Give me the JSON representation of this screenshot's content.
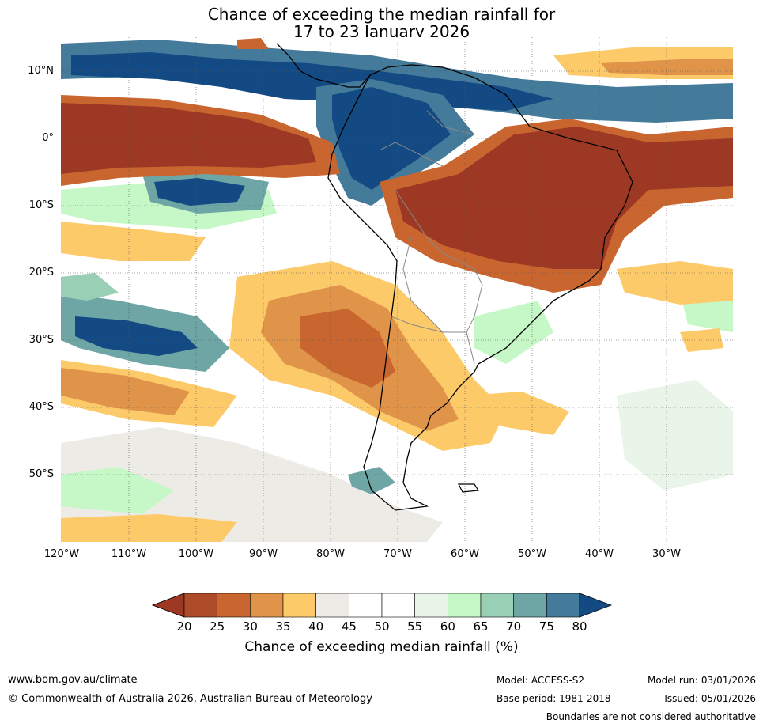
{
  "title": {
    "line1": "Chance of exceeding the median rainfall for",
    "line2": "17 to 23 January 2026"
  },
  "axes": {
    "lat_labels": [
      "10°N",
      "0°",
      "10°S",
      "20°S",
      "30°S",
      "40°S",
      "50°S"
    ],
    "lon_labels": [
      "120°W",
      "110°W",
      "100°W",
      "90°W",
      "80°W",
      "70°W",
      "60°W",
      "50°W",
      "40°W",
      "30°W"
    ]
  },
  "colorbar": {
    "ticks": [
      "20",
      "25",
      "30",
      "35",
      "40",
      "45",
      "50",
      "55",
      "60",
      "65",
      "70",
      "75",
      "80"
    ],
    "colors": [
      "#9c3823",
      "#ad4a28",
      "#c9662f",
      "#e0944a",
      "#fdca6a",
      "#edebe6",
      "#ffffff",
      "#ffffff",
      "#e8f5e8",
      "#c6f7c6",
      "#98cfb5",
      "#6ea6a6",
      "#457b9a",
      "#134a84"
    ],
    "label": "Chance of exceeding median rainfall (%)"
  },
  "footer": {
    "url": "www.bom.gov.au/climate",
    "copyright": "© Commonwealth of Australia 2026, Australian Bureau of Meteorology",
    "model": "Model: ACCESS-S2",
    "base_period": "Base period: 1981-2018",
    "model_run": "Model run: 03/01/2026",
    "issued": "Issued: 05/01/2026",
    "disclaimer": "Boundaries are not considered authoritative"
  }
}
